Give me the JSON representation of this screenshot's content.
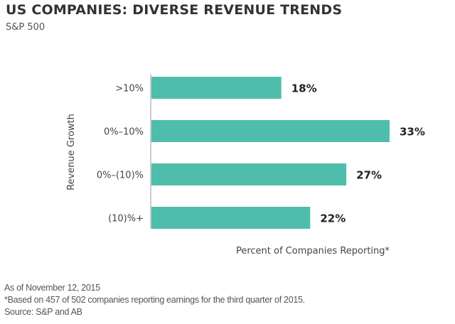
{
  "header": {
    "title": "US COMPANIES: DIVERSE REVENUE TRENDS",
    "subtitle": "S&P 500"
  },
  "chart_data": {
    "type": "bar",
    "orientation": "horizontal",
    "title": "US COMPANIES: DIVERSE REVENUE TRENDS",
    "subtitle": "S&P 500",
    "categories": [
      ">10%",
      "0%–10%",
      "0%–(10)%",
      "(10)%+"
    ],
    "values": [
      18,
      33,
      27,
      22
    ],
    "data_labels": [
      "18%",
      "33%",
      "27%",
      "22%"
    ],
    "xlabel": "Percent of Companies Reporting*",
    "ylabel": "Revenue Growth",
    "xlim": [
      0,
      33
    ],
    "grid": false,
    "legend": "none",
    "bar_color": "#4fbdab"
  },
  "footer": {
    "date_note": "As of November 12, 2015",
    "footnote": "*Based on 457 of 502 companies reporting earnings for the third quarter of 2015.",
    "source": "Source: S&P and AB"
  }
}
